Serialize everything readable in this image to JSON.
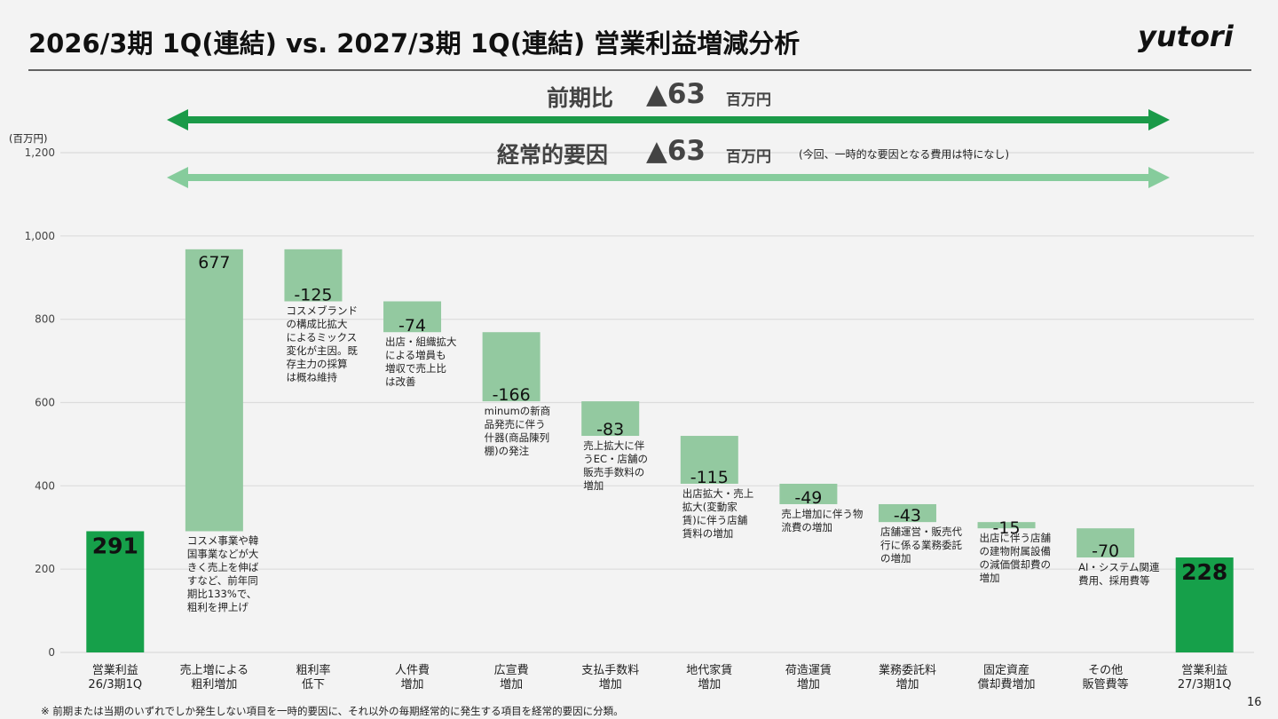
{
  "title": "2026/3期 1Q(連結) vs. 2027/3期 1Q(連結) 営業利益増減分析",
  "logo": "yutori",
  "page_number": "16",
  "footnote": "※ 前期または当期のいずれでしか発生しない項目を一時的要因に、それ以外の毎期経常的に発生する項目を経常的要因に分類。",
  "comparisons": [
    {
      "label": "前期比",
      "amount": "▲63",
      "unit": "百万円",
      "color": "#1a9a48"
    },
    {
      "label": "経常的要因",
      "amount": "▲63",
      "unit": "百万円",
      "note": "(今回、一時的な要因となる費用は特になし)",
      "color": "#86cc9c"
    }
  ],
  "chart_data": {
    "type": "waterfall",
    "y_unit": "(百万円)",
    "categories": [
      "営業利益\n26/3期1Q",
      "売上増による\n粗利増加",
      "粗利率\n低下",
      "人件費\n増加",
      "広宣費\n増加",
      "支払手数料\n増加",
      "地代家賃\n増加",
      "荷造運賃\n増加",
      "業務委託料\n増加",
      "固定資産\n償却費増加",
      "その他\n販管費等",
      "営業利益\n27/3期1Q"
    ],
    "values": [
      291,
      677,
      -125,
      -74,
      -166,
      -83,
      -115,
      -49,
      -43,
      -15,
      -70,
      228
    ],
    "measures": [
      "absolute",
      "relative",
      "relative",
      "relative",
      "relative",
      "relative",
      "relative",
      "relative",
      "relative",
      "relative",
      "relative",
      "total"
    ],
    "colors": [
      "#16a04a",
      "#93c9a0",
      "#93c9a0",
      "#93c9a0",
      "#93c9a0",
      "#93c9a0",
      "#93c9a0",
      "#93c9a0",
      "#93c9a0",
      "#93c9a0",
      "#93c9a0",
      "#16a04a"
    ],
    "notes": [
      null,
      "コスメ事業や韓\n国事業などが大\nきく売上を伸ば\nすなど、前年同\n期比133%で、\n粗利を押上げ",
      "コスメブランド\nの構成比拡大\nによるミックス\n変化が主因。既\n存主力の採算\nは概ね維持",
      "出店・組織拡大\nによる増員も\n増収で売上比\nは改善",
      "minumの新商\n品発売に伴う\n什器(商品陳列\n棚)の発注",
      "売上拡大に伴\nうEC・店舗の\n販売手数料の\n増加",
      "出店拡大・売上\n拡大(変動家\n賃)に伴う店舗\n賃料の増加",
      "売上増加に伴う物\n流費の増加",
      "店舗運営・販売代\n行に係る業務委託\nの増加",
      "出店に伴う店舗\nの建物附属設備\nの減価償却費の\n増加",
      "AI・システム関連\n費用、採用費等",
      null
    ],
    "ylim": [
      0,
      1200
    ],
    "yticks": [
      0,
      200,
      400,
      600,
      800,
      {
        "value": 1000,
        "label": "1,000"
      },
      {
        "value": 1200,
        "label": "1,200"
      }
    ],
    "grid": true
  }
}
